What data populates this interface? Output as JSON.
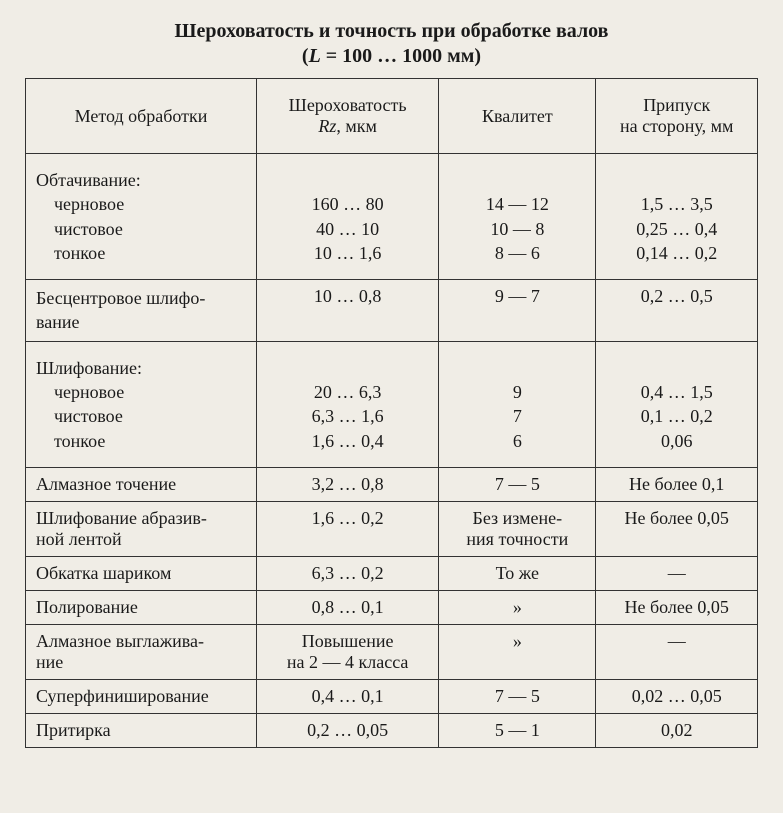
{
  "title": "Шероховатость и точность при обработке валов",
  "subtitle_prefix": "(",
  "subtitle_L": "L",
  "subtitle_mid": " = 100 … 1000 мм)",
  "headers": {
    "method": "Метод обработки",
    "rz_line1": "Шероховатость",
    "rz_Rz": "Rz",
    "rz_unit": ", мкм",
    "quality": "Квалитет",
    "allowance_line1": "Припуск",
    "allowance_line2": "на сторону, мм"
  },
  "rows": {
    "r1": {
      "head": "Обтачивание:",
      "sub1": "черновое",
      "sub2": "чистовое",
      "sub3": "тонкое",
      "rz1": "160 … 80",
      "rz2": "40 … 10",
      "rz3": "10 … 1,6",
      "q1": "14 — 12",
      "q2": "10 — 8",
      "q3": "8 — 6",
      "a1": "1,5 … 3,5",
      "a2": "0,25 … 0,4",
      "a3": "0,14 … 0,2"
    },
    "r2": {
      "method": "Бесцентровое шлифо-\nвание",
      "rz": "10 … 0,8",
      "q": "9 — 7",
      "a": "0,2 … 0,5"
    },
    "r3": {
      "head": "Шлифование:",
      "sub1": "черновое",
      "sub2": "чистовое",
      "sub3": "тонкое",
      "rz1": "20 … 6,3",
      "rz2": "6,3 … 1,6",
      "rz3": "1,6 … 0,4",
      "q1": "9",
      "q2": "7",
      "q3": "6",
      "a1": "0,4 … 1,5",
      "a2": "0,1 … 0,2",
      "a3": "0,06"
    },
    "r4": {
      "method": "Алмазное точение",
      "rz": "3,2 … 0,8",
      "q": "7 — 5",
      "a": "Не более 0,1"
    },
    "r5": {
      "method": "Шлифование абразив-\nной лентой",
      "rz": "1,6 … 0,2",
      "q": "Без измене-\nния точности",
      "a": "Не более 0,05"
    },
    "r6": {
      "method": "Обкатка шариком",
      "rz": "6,3 … 0,2",
      "q": "То же",
      "a": "—"
    },
    "r7": {
      "method": "Полирование",
      "rz": "0,8 … 0,1",
      "q": "»",
      "a": "Не более 0,05"
    },
    "r8": {
      "method": "Алмазное выглажива-\nние",
      "rz": "Повышение\nна 2 — 4 класса",
      "q": "»",
      "a": "—"
    },
    "r9": {
      "method": "Суперфиниширование",
      "rz": "0,4 … 0,1",
      "q": "7 — 5",
      "a": "0,02 … 0,05"
    },
    "r10": {
      "method": "Притирка",
      "rz": "0,2 … 0,05",
      "q": "5 — 1",
      "a": "0,02"
    }
  }
}
